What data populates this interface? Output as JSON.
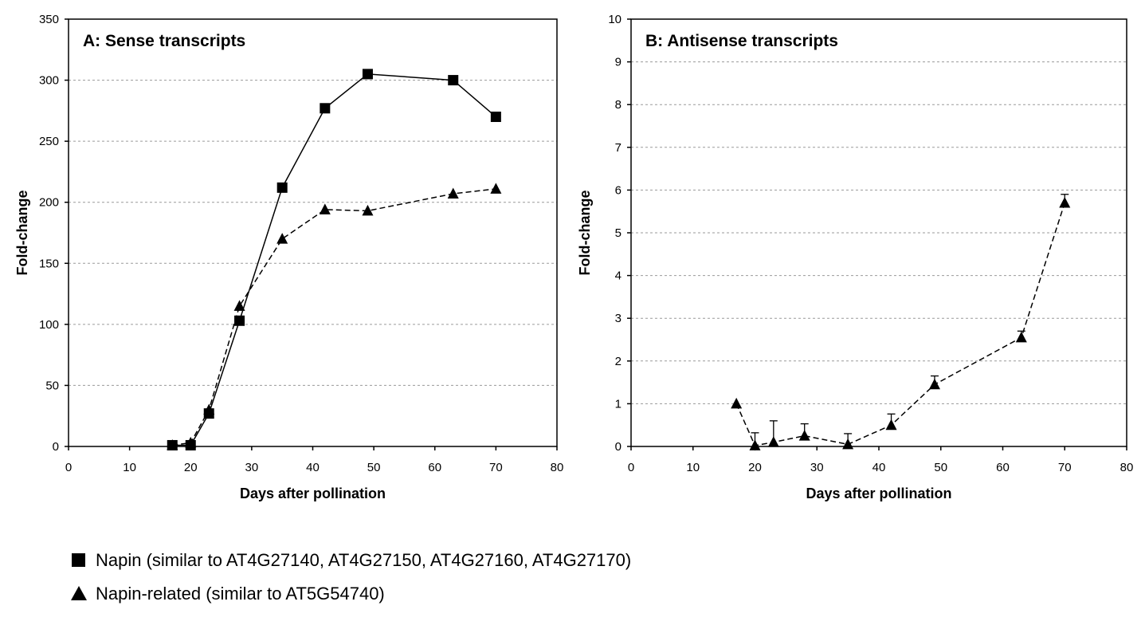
{
  "chart_data": [
    {
      "type": "line",
      "title": "A: Sense transcripts",
      "xlabel": "Days after pollination",
      "ylabel": "Fold-change",
      "xlim": [
        0,
        80
      ],
      "ylim": [
        0,
        350
      ],
      "xticks": [
        0,
        10,
        20,
        30,
        40,
        50,
        60,
        70,
        80
      ],
      "yticks": [
        0,
        50,
        100,
        150,
        200,
        250,
        300,
        350
      ],
      "grid": "horizontal dashed",
      "series": [
        {
          "name": "Napin (similar to AT4G27140, AT4G27150, AT4G27160, AT4G27170)",
          "marker": "square",
          "line": "solid",
          "x": [
            17,
            20,
            23,
            28,
            35,
            42,
            49,
            63,
            70
          ],
          "y": [
            1,
            1,
            27,
            103,
            212,
            277,
            305,
            300,
            270
          ]
        },
        {
          "name": "Napin-related (similar to AT5G54740)",
          "marker": "triangle",
          "line": "dashed",
          "x": [
            17,
            20,
            23,
            28,
            35,
            42,
            49,
            63,
            70
          ],
          "y": [
            1,
            3,
            30,
            115,
            170,
            194,
            193,
            207,
            211
          ]
        }
      ]
    },
    {
      "type": "line",
      "title": "B: Antisense transcripts",
      "xlabel": "Days after pollination",
      "ylabel": "Fold-change",
      "xlim": [
        0,
        80
      ],
      "ylim": [
        0,
        10
      ],
      "xticks": [
        0,
        10,
        20,
        30,
        40,
        50,
        60,
        70,
        80
      ],
      "yticks": [
        0,
        1,
        2,
        3,
        4,
        5,
        6,
        7,
        8,
        9,
        10
      ],
      "grid": "horizontal dashed",
      "series": [
        {
          "name": "Napin-related (similar to AT5G54740)",
          "marker": "triangle",
          "line": "dashed",
          "x": [
            17,
            20,
            23,
            28,
            35,
            42,
            49,
            63,
            70
          ],
          "y": [
            1.0,
            0.02,
            0.1,
            0.25,
            0.05,
            0.5,
            1.45,
            2.55,
            5.7
          ],
          "error_upper": [
            0,
            0.32,
            0.6,
            0.53,
            0.3,
            0.76,
            1.65,
            2.7,
            5.9
          ]
        }
      ]
    }
  ],
  "legend": [
    {
      "marker": "square",
      "label": "Napin (similar to AT4G27140, AT4G27150, AT4G27160, AT4G27170)"
    },
    {
      "marker": "triangle",
      "label": "Napin-related (similar to AT5G54740)"
    }
  ]
}
